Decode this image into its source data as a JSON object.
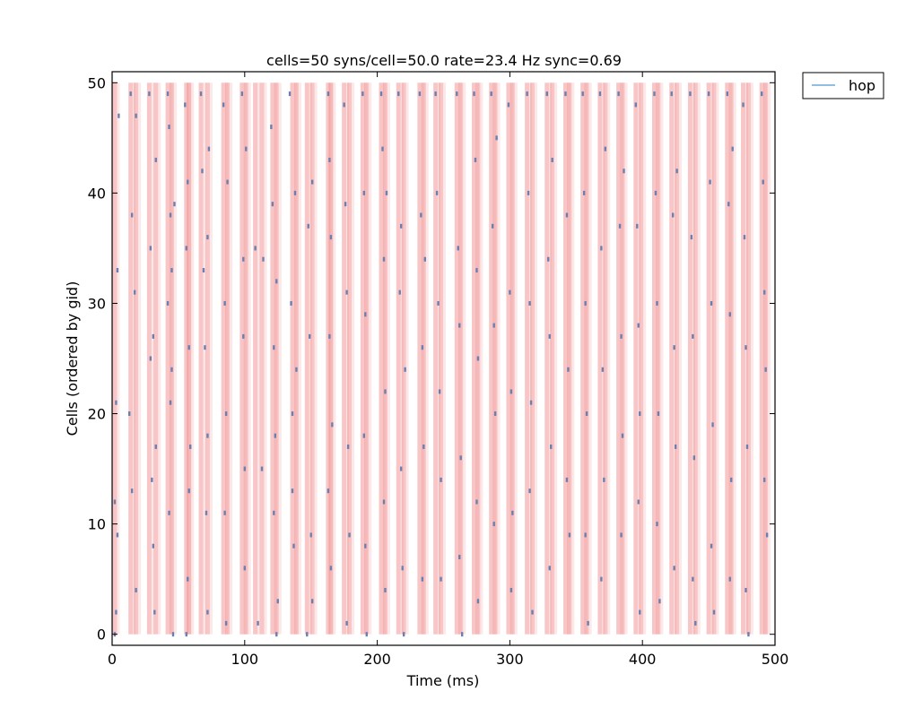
{
  "chart_data": {
    "type": "scatter",
    "title": "cells=50 syns/cell=50.0 rate=23.4 Hz sync=0.69",
    "xlabel": "Time (ms)",
    "ylabel": "Cells (ordered by gid)",
    "xlim": [
      0,
      500
    ],
    "ylim": [
      -1,
      51
    ],
    "xticks": [
      "0",
      "100",
      "200",
      "300",
      "400",
      "500"
    ],
    "yticks": [
      "0",
      "10",
      "20",
      "30",
      "40",
      "50"
    ],
    "legend": {
      "position": "outside-top-right",
      "entries": [
        "hop"
      ]
    },
    "grid": false,
    "colors": {
      "spike": "#6a7fb0",
      "band": "#f08080",
      "legend_line": "#6fa8dc"
    },
    "sync_times": [
      2,
      14,
      18,
      28,
      33,
      42,
      45,
      56,
      58,
      67,
      72,
      84,
      87,
      98,
      101,
      108,
      113,
      121,
      124,
      136,
      139,
      147,
      151,
      163,
      165,
      175,
      179,
      189,
      192,
      203,
      206,
      216,
      220,
      232,
      235,
      244,
      248,
      260,
      263,
      273,
      276,
      286,
      289,
      299,
      302,
      313,
      317,
      328,
      332,
      342,
      345,
      355,
      358,
      368,
      372,
      382,
      385,
      395,
      399,
      409,
      412,
      422,
      426,
      436,
      440,
      450,
      454,
      464,
      467,
      476,
      480,
      490,
      493
    ],
    "series": [
      {
        "name": "hop",
        "points": [
          [
            2,
            0
          ],
          [
            3,
            2
          ],
          [
            4,
            9
          ],
          [
            5,
            47
          ],
          [
            2,
            12
          ],
          [
            3,
            21
          ],
          [
            4,
            33
          ],
          [
            14,
            49
          ],
          [
            15,
            38
          ],
          [
            13,
            20
          ],
          [
            15,
            13
          ],
          [
            18,
            4
          ],
          [
            17,
            31
          ],
          [
            18,
            47
          ],
          [
            28,
            49
          ],
          [
            29,
            25
          ],
          [
            30,
            14
          ],
          [
            31,
            8
          ],
          [
            32,
            2
          ],
          [
            29,
            35
          ],
          [
            31,
            27
          ],
          [
            33,
            43
          ],
          [
            33,
            17
          ],
          [
            42,
            49
          ],
          [
            43,
            46
          ],
          [
            44,
            38
          ],
          [
            45,
            33
          ],
          [
            44,
            21
          ],
          [
            43,
            11
          ],
          [
            46,
            0
          ],
          [
            42,
            30
          ],
          [
            45,
            24
          ],
          [
            47,
            39
          ],
          [
            56,
            0
          ],
          [
            57,
            5
          ],
          [
            58,
            13
          ],
          [
            56,
            35
          ],
          [
            58,
            26
          ],
          [
            59,
            17
          ],
          [
            55,
            48
          ],
          [
            57,
            41
          ],
          [
            67,
            49
          ],
          [
            68,
            42
          ],
          [
            69,
            33
          ],
          [
            70,
            26
          ],
          [
            71,
            11
          ],
          [
            72,
            18
          ],
          [
            73,
            44
          ],
          [
            72,
            36
          ],
          [
            72,
            2
          ],
          [
            84,
            48
          ],
          [
            85,
            30
          ],
          [
            86,
            20
          ],
          [
            85,
            11
          ],
          [
            87,
            41
          ],
          [
            86,
            1
          ],
          [
            98,
            49
          ],
          [
            99,
            34
          ],
          [
            100,
            15
          ],
          [
            101,
            44
          ],
          [
            99,
            27
          ],
          [
            100,
            6
          ],
          [
            108,
            35
          ],
          [
            110,
            1
          ],
          [
            113,
            15
          ],
          [
            114,
            34
          ],
          [
            120,
            46
          ],
          [
            121,
            39
          ],
          [
            122,
            26
          ],
          [
            123,
            18
          ],
          [
            124,
            0
          ],
          [
            122,
            11
          ],
          [
            125,
            3
          ],
          [
            124,
            32
          ],
          [
            134,
            49
          ],
          [
            135,
            30
          ],
          [
            136,
            20
          ],
          [
            137,
            8
          ],
          [
            138,
            40
          ],
          [
            139,
            24
          ],
          [
            136,
            13
          ],
          [
            147,
            0
          ],
          [
            148,
            37
          ],
          [
            149,
            27
          ],
          [
            150,
            9
          ],
          [
            151,
            41
          ],
          [
            151,
            3
          ],
          [
            163,
            49
          ],
          [
            164,
            43
          ],
          [
            165,
            36
          ],
          [
            164,
            27
          ],
          [
            163,
            13
          ],
          [
            165,
            6
          ],
          [
            166,
            19
          ],
          [
            175,
            48
          ],
          [
            176,
            39
          ],
          [
            177,
            31
          ],
          [
            178,
            17
          ],
          [
            179,
            9
          ],
          [
            177,
            1
          ],
          [
            189,
            49
          ],
          [
            190,
            40
          ],
          [
            191,
            29
          ],
          [
            190,
            18
          ],
          [
            191,
            8
          ],
          [
            192,
            0
          ],
          [
            203,
            49
          ],
          [
            204,
            44
          ],
          [
            205,
            34
          ],
          [
            206,
            22
          ],
          [
            205,
            12
          ],
          [
            206,
            4
          ],
          [
            207,
            40
          ],
          [
            216,
            49
          ],
          [
            217,
            31
          ],
          [
            218,
            15
          ],
          [
            219,
            6
          ],
          [
            220,
            0
          ],
          [
            218,
            37
          ],
          [
            221,
            24
          ],
          [
            232,
            49
          ],
          [
            233,
            38
          ],
          [
            234,
            26
          ],
          [
            235,
            17
          ],
          [
            234,
            5
          ],
          [
            236,
            34
          ],
          [
            244,
            49
          ],
          [
            245,
            40
          ],
          [
            246,
            30
          ],
          [
            247,
            22
          ],
          [
            248,
            14
          ],
          [
            248,
            5
          ],
          [
            260,
            49
          ],
          [
            261,
            35
          ],
          [
            262,
            28
          ],
          [
            263,
            16
          ],
          [
            262,
            7
          ],
          [
            264,
            0
          ],
          [
            273,
            49
          ],
          [
            274,
            43
          ],
          [
            275,
            33
          ],
          [
            276,
            25
          ],
          [
            275,
            12
          ],
          [
            276,
            3
          ],
          [
            286,
            49
          ],
          [
            287,
            37
          ],
          [
            288,
            28
          ],
          [
            289,
            20
          ],
          [
            288,
            10
          ],
          [
            290,
            45
          ],
          [
            299,
            48
          ],
          [
            300,
            31
          ],
          [
            301,
            22
          ],
          [
            302,
            11
          ],
          [
            301,
            4
          ],
          [
            313,
            49
          ],
          [
            314,
            40
          ],
          [
            315,
            30
          ],
          [
            316,
            21
          ],
          [
            315,
            13
          ],
          [
            317,
            2
          ],
          [
            328,
            49
          ],
          [
            329,
            34
          ],
          [
            330,
            27
          ],
          [
            331,
            17
          ],
          [
            330,
            6
          ],
          [
            332,
            43
          ],
          [
            342,
            49
          ],
          [
            343,
            38
          ],
          [
            344,
            24
          ],
          [
            345,
            9
          ],
          [
            343,
            14
          ],
          [
            355,
            49
          ],
          [
            356,
            40
          ],
          [
            357,
            30
          ],
          [
            358,
            20
          ],
          [
            357,
            9
          ],
          [
            359,
            1
          ],
          [
            368,
            49
          ],
          [
            369,
            35
          ],
          [
            370,
            24
          ],
          [
            371,
            14
          ],
          [
            369,
            5
          ],
          [
            372,
            44
          ],
          [
            382,
            49
          ],
          [
            383,
            37
          ],
          [
            384,
            27
          ],
          [
            385,
            18
          ],
          [
            384,
            9
          ],
          [
            386,
            42
          ],
          [
            395,
            48
          ],
          [
            396,
            37
          ],
          [
            397,
            28
          ],
          [
            398,
            20
          ],
          [
            397,
            12
          ],
          [
            398,
            2
          ],
          [
            409,
            49
          ],
          [
            410,
            40
          ],
          [
            411,
            30
          ],
          [
            412,
            20
          ],
          [
            411,
            10
          ],
          [
            413,
            3
          ],
          [
            422,
            49
          ],
          [
            423,
            38
          ],
          [
            424,
            26
          ],
          [
            425,
            17
          ],
          [
            424,
            6
          ],
          [
            426,
            42
          ],
          [
            436,
            49
          ],
          [
            437,
            36
          ],
          [
            438,
            27
          ],
          [
            439,
            16
          ],
          [
            438,
            5
          ],
          [
            440,
            1
          ],
          [
            450,
            49
          ],
          [
            451,
            41
          ],
          [
            452,
            30
          ],
          [
            453,
            19
          ],
          [
            452,
            8
          ],
          [
            454,
            2
          ],
          [
            464,
            49
          ],
          [
            465,
            39
          ],
          [
            466,
            29
          ],
          [
            467,
            14
          ],
          [
            466,
            5
          ],
          [
            468,
            44
          ],
          [
            476,
            48
          ],
          [
            477,
            36
          ],
          [
            478,
            26
          ],
          [
            479,
            17
          ],
          [
            478,
            4
          ],
          [
            480,
            0
          ],
          [
            490,
            49
          ],
          [
            491,
            41
          ],
          [
            492,
            31
          ],
          [
            493,
            24
          ],
          [
            492,
            14
          ],
          [
            494,
            9
          ]
        ]
      }
    ]
  }
}
